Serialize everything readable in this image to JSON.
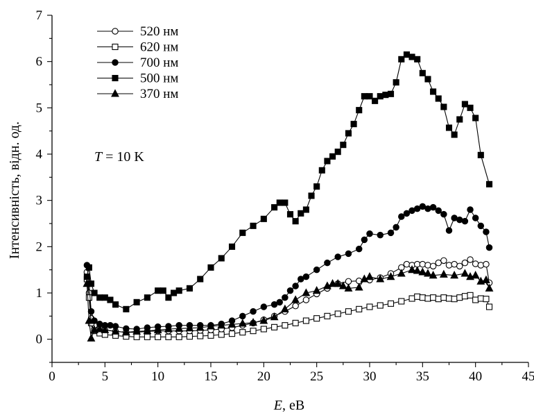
{
  "chart_data": {
    "type": "scatter",
    "xlabel_var": "E",
    "xlabel_unit": ", еВ",
    "ylabel": "Інтенсивність, відн. од.",
    "xlim": [
      0,
      45
    ],
    "ylim": [
      -0.5,
      7
    ],
    "xticks": [
      "0",
      "5",
      "10",
      "15",
      "20",
      "25",
      "30",
      "35",
      "40",
      "45"
    ],
    "yticks": [
      "0",
      "1",
      "2",
      "3",
      "4",
      "5",
      "6",
      "7"
    ],
    "grid": false,
    "legend_position": "top-left",
    "annotation_var": "T",
    "annotation_value": " = 10 K",
    "series": [
      {
        "name": "520 нм",
        "marker": "circle-open",
        "points": [
          [
            3.3,
            1.45
          ],
          [
            3.5,
            1.0
          ],
          [
            3.7,
            0.45
          ],
          [
            4.0,
            0.3
          ],
          [
            4.5,
            0.22
          ],
          [
            5,
            0.2
          ],
          [
            6,
            0.17
          ],
          [
            7,
            0.15
          ],
          [
            8,
            0.15
          ],
          [
            9,
            0.17
          ],
          [
            10,
            0.18
          ],
          [
            11,
            0.18
          ],
          [
            12,
            0.18
          ],
          [
            13,
            0.18
          ],
          [
            14,
            0.19
          ],
          [
            15,
            0.2
          ],
          [
            16,
            0.22
          ],
          [
            17,
            0.25
          ],
          [
            18,
            0.3
          ],
          [
            19,
            0.35
          ],
          [
            20,
            0.42
          ],
          [
            21,
            0.5
          ],
          [
            22,
            0.6
          ],
          [
            23,
            0.72
          ],
          [
            24,
            0.85
          ],
          [
            25,
            0.98
          ],
          [
            26,
            1.1
          ],
          [
            27,
            1.2
          ],
          [
            28,
            1.25
          ],
          [
            29,
            1.26
          ],
          [
            30,
            1.28
          ],
          [
            31,
            1.33
          ],
          [
            32,
            1.42
          ],
          [
            33,
            1.55
          ],
          [
            33.5,
            1.62
          ],
          [
            34,
            1.6
          ],
          [
            34.5,
            1.62
          ],
          [
            35,
            1.62
          ],
          [
            35.5,
            1.6
          ],
          [
            36,
            1.58
          ],
          [
            36.5,
            1.65
          ],
          [
            37,
            1.7
          ],
          [
            37.5,
            1.6
          ],
          [
            38,
            1.62
          ],
          [
            38.5,
            1.58
          ],
          [
            39,
            1.65
          ],
          [
            39.5,
            1.72
          ],
          [
            40,
            1.63
          ],
          [
            40.5,
            1.6
          ],
          [
            41,
            1.62
          ],
          [
            41.3,
            1.22
          ]
        ]
      },
      {
        "name": "620 нм",
        "marker": "square-open",
        "points": [
          [
            3.3,
            1.3
          ],
          [
            3.5,
            0.9
          ],
          [
            3.7,
            0.35
          ],
          [
            4.0,
            0.18
          ],
          [
            4.5,
            0.13
          ],
          [
            5,
            0.1
          ],
          [
            6,
            0.08
          ],
          [
            7,
            0.06
          ],
          [
            8,
            0.05
          ],
          [
            9,
            0.05
          ],
          [
            10,
            0.05
          ],
          [
            11,
            0.05
          ],
          [
            12,
            0.05
          ],
          [
            13,
            0.06
          ],
          [
            14,
            0.07
          ],
          [
            15,
            0.08
          ],
          [
            16,
            0.1
          ],
          [
            17,
            0.12
          ],
          [
            18,
            0.15
          ],
          [
            19,
            0.18
          ],
          [
            20,
            0.22
          ],
          [
            21,
            0.26
          ],
          [
            22,
            0.3
          ],
          [
            23,
            0.35
          ],
          [
            24,
            0.4
          ],
          [
            25,
            0.45
          ],
          [
            26,
            0.5
          ],
          [
            27,
            0.55
          ],
          [
            28,
            0.6
          ],
          [
            29,
            0.65
          ],
          [
            30,
            0.7
          ],
          [
            31,
            0.73
          ],
          [
            32,
            0.77
          ],
          [
            33,
            0.82
          ],
          [
            34,
            0.88
          ],
          [
            34.5,
            0.92
          ],
          [
            35,
            0.9
          ],
          [
            35.5,
            0.88
          ],
          [
            36,
            0.9
          ],
          [
            36.5,
            0.87
          ],
          [
            37,
            0.9
          ],
          [
            37.5,
            0.88
          ],
          [
            38,
            0.87
          ],
          [
            38.5,
            0.9
          ],
          [
            39,
            0.93
          ],
          [
            39.5,
            0.95
          ],
          [
            40,
            0.85
          ],
          [
            40.5,
            0.88
          ],
          [
            41,
            0.87
          ],
          [
            41.3,
            0.7
          ]
        ]
      },
      {
        "name": "700 нм",
        "marker": "circle-filled",
        "points": [
          [
            3.3,
            1.6
          ],
          [
            3.5,
            1.2
          ],
          [
            3.7,
            0.6
          ],
          [
            4.0,
            0.4
          ],
          [
            4.5,
            0.33
          ],
          [
            5,
            0.3
          ],
          [
            5.5,
            0.3
          ],
          [
            6,
            0.28
          ],
          [
            7,
            0.23
          ],
          [
            8,
            0.22
          ],
          [
            9,
            0.25
          ],
          [
            10,
            0.27
          ],
          [
            11,
            0.28
          ],
          [
            12,
            0.3
          ],
          [
            13,
            0.3
          ],
          [
            14,
            0.3
          ],
          [
            15,
            0.3
          ],
          [
            16,
            0.33
          ],
          [
            17,
            0.4
          ],
          [
            18,
            0.5
          ],
          [
            19,
            0.6
          ],
          [
            20,
            0.7
          ],
          [
            21,
            0.75
          ],
          [
            21.5,
            0.8
          ],
          [
            22,
            0.9
          ],
          [
            22.5,
            1.05
          ],
          [
            23,
            1.15
          ],
          [
            23.5,
            1.3
          ],
          [
            24,
            1.35
          ],
          [
            25,
            1.5
          ],
          [
            26,
            1.65
          ],
          [
            27,
            1.78
          ],
          [
            28,
            1.85
          ],
          [
            29,
            1.95
          ],
          [
            29.5,
            2.15
          ],
          [
            30,
            2.28
          ],
          [
            31,
            2.25
          ],
          [
            32,
            2.3
          ],
          [
            32.5,
            2.42
          ],
          [
            33,
            2.65
          ],
          [
            33.5,
            2.72
          ],
          [
            34,
            2.78
          ],
          [
            34.5,
            2.82
          ],
          [
            35,
            2.87
          ],
          [
            35.5,
            2.82
          ],
          [
            36,
            2.85
          ],
          [
            36.5,
            2.78
          ],
          [
            37,
            2.7
          ],
          [
            37.5,
            2.35
          ],
          [
            38,
            2.62
          ],
          [
            38.5,
            2.58
          ],
          [
            39,
            2.55
          ],
          [
            39.5,
            2.8
          ],
          [
            40,
            2.62
          ],
          [
            40.5,
            2.45
          ],
          [
            41,
            2.32
          ],
          [
            41.3,
            1.98
          ]
        ]
      },
      {
        "name": "500 нм",
        "marker": "square-filled",
        "points": [
          [
            3.3,
            1.35
          ],
          [
            3.5,
            1.55
          ],
          [
            3.7,
            1.2
          ],
          [
            4.0,
            1.0
          ],
          [
            4.5,
            0.9
          ],
          [
            5,
            0.9
          ],
          [
            5.5,
            0.85
          ],
          [
            6,
            0.75
          ],
          [
            7,
            0.65
          ],
          [
            8,
            0.8
          ],
          [
            9,
            0.9
          ],
          [
            10,
            1.05
          ],
          [
            10.5,
            1.05
          ],
          [
            11,
            0.9
          ],
          [
            11.5,
            1.0
          ],
          [
            12,
            1.05
          ],
          [
            13,
            1.1
          ],
          [
            14,
            1.3
          ],
          [
            15,
            1.55
          ],
          [
            16,
            1.75
          ],
          [
            17,
            2.0
          ],
          [
            18,
            2.3
          ],
          [
            19,
            2.45
          ],
          [
            20,
            2.6
          ],
          [
            21,
            2.85
          ],
          [
            21.5,
            2.95
          ],
          [
            22,
            2.95
          ],
          [
            22.5,
            2.7
          ],
          [
            23,
            2.55
          ],
          [
            23.5,
            2.72
          ],
          [
            24,
            2.8
          ],
          [
            24.5,
            3.1
          ],
          [
            25,
            3.3
          ],
          [
            25.5,
            3.65
          ],
          [
            26,
            3.85
          ],
          [
            26.5,
            3.95
          ],
          [
            27,
            4.05
          ],
          [
            27.5,
            4.2
          ],
          [
            28,
            4.45
          ],
          [
            28.5,
            4.65
          ],
          [
            29,
            4.95
          ],
          [
            29.5,
            5.25
          ],
          [
            30,
            5.25
          ],
          [
            30.5,
            5.15
          ],
          [
            31,
            5.25
          ],
          [
            31.5,
            5.28
          ],
          [
            32,
            5.3
          ],
          [
            32.5,
            5.55
          ],
          [
            33,
            6.05
          ],
          [
            33.5,
            6.15
          ],
          [
            34,
            6.1
          ],
          [
            34.5,
            6.05
          ],
          [
            35,
            5.75
          ],
          [
            35.5,
            5.62
          ],
          [
            36,
            5.35
          ],
          [
            36.5,
            5.2
          ],
          [
            37,
            5.02
          ],
          [
            37.5,
            4.57
          ],
          [
            38,
            4.42
          ],
          [
            38.5,
            4.75
          ],
          [
            39,
            5.08
          ],
          [
            39.5,
            5.0
          ],
          [
            40,
            4.78
          ],
          [
            40.5,
            3.98
          ],
          [
            41.3,
            3.35
          ]
        ]
      },
      {
        "name": "370 нм",
        "marker": "triangle-filled",
        "points": [
          [
            3.3,
            1.2
          ],
          [
            3.5,
            0.4
          ],
          [
            3.7,
            0.02
          ],
          [
            4.0,
            0.2
          ],
          [
            4.5,
            0.22
          ],
          [
            5,
            0.2
          ],
          [
            6,
            0.17
          ],
          [
            7,
            0.15
          ],
          [
            8,
            0.17
          ],
          [
            9,
            0.18
          ],
          [
            10,
            0.2
          ],
          [
            11,
            0.22
          ],
          [
            12,
            0.23
          ],
          [
            13,
            0.24
          ],
          [
            14,
            0.25
          ],
          [
            15,
            0.28
          ],
          [
            16,
            0.3
          ],
          [
            17,
            0.32
          ],
          [
            18,
            0.34
          ],
          [
            19,
            0.36
          ],
          [
            20,
            0.4
          ],
          [
            21,
            0.48
          ],
          [
            22,
            0.65
          ],
          [
            23,
            0.85
          ],
          [
            24,
            1.0
          ],
          [
            25,
            1.05
          ],
          [
            26,
            1.15
          ],
          [
            26.5,
            1.2
          ],
          [
            27,
            1.2
          ],
          [
            27.5,
            1.15
          ],
          [
            28,
            1.1
          ],
          [
            29,
            1.12
          ],
          [
            29.5,
            1.3
          ],
          [
            30,
            1.35
          ],
          [
            31,
            1.3
          ],
          [
            32,
            1.35
          ],
          [
            33,
            1.42
          ],
          [
            34,
            1.5
          ],
          [
            34.5,
            1.48
          ],
          [
            35,
            1.45
          ],
          [
            35.5,
            1.42
          ],
          [
            36,
            1.38
          ],
          [
            37,
            1.4
          ],
          [
            38,
            1.38
          ],
          [
            39,
            1.42
          ],
          [
            39.5,
            1.35
          ],
          [
            40,
            1.38
          ],
          [
            40.5,
            1.25
          ],
          [
            41,
            1.28
          ],
          [
            41.3,
            1.1
          ]
        ]
      }
    ]
  }
}
